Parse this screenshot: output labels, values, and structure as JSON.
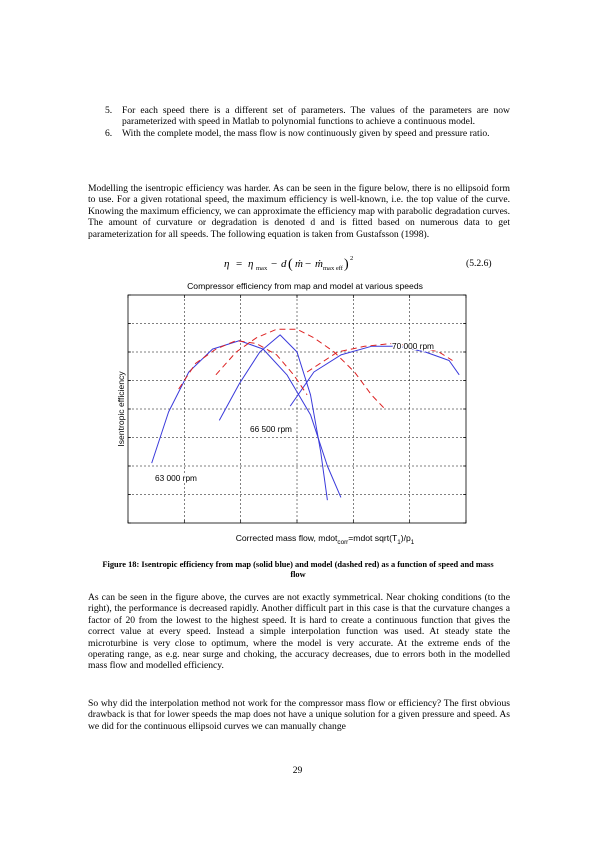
{
  "list_items": [
    {
      "num": "5.",
      "text": "For each speed there is a different set of parameters. The values of the parameters are now parameterized with speed in Matlab to polynomial functions to achieve a continuous model."
    },
    {
      "num": "6.",
      "text": "With the complete model, the mass flow is now continuously given by speed and pressure ratio."
    }
  ],
  "paragraph_1": "Modelling the isentropic efficiency was harder. As can be seen in the figure below, there is no ellipsoid form to use. For a given rotational speed, the maximum efficiency is well-known, i.e. the top value of the curve. Knowing the maximum efficiency, we can approximate the efficiency map with parabolic degradation curves. The amount of curvature or degradation is denoted d and is fitted based on numerous data to get parameterization for all speeds. The following equation is taken from Gustafsson (1998).",
  "equation_number": "(5.2.6)",
  "chart_data": {
    "type": "line",
    "title": "Compressor efficiency from map and model at various speeds",
    "xlabel_main": "Corrected mass flow, mdot",
    "xlabel_sub": "corr",
    "xlabel_rest": "=mdot sqrt(T",
    "xlabel_sub2": "1",
    "xlabel_rest2": ")/p",
    "xlabel_sub3": "1",
    "ylabel": "Isentropic efficiency",
    "xlim": [
      0,
      10
    ],
    "ylim": [
      0,
      8
    ],
    "grid": true,
    "axis_numbers_shown": false,
    "annotations": [
      "63 000 rpm",
      "66 500 rpm",
      "70 000 rpm"
    ],
    "series": [
      {
        "style": "solid",
        "color": "#3a3adb",
        "x": [
          0.7,
          1.2,
          1.8,
          2.5,
          3.3,
          4.0,
          4.7,
          5.4,
          5.9,
          6.3
        ],
        "y": [
          2.1,
          3.9,
          5.3,
          6.1,
          6.4,
          6.1,
          5.2,
          3.8,
          2.0,
          0.9
        ]
      },
      {
        "style": "solid",
        "color": "#3a3adb",
        "x": [
          2.7,
          3.3,
          3.9,
          4.5,
          5.0,
          5.4,
          5.7,
          5.9
        ],
        "y": [
          3.6,
          4.9,
          6.0,
          6.6,
          6.0,
          4.5,
          2.5,
          0.8
        ]
      },
      {
        "style": "solid",
        "color": "#3a3adb",
        "x": [
          4.8,
          5.5,
          6.3,
          7.2,
          8.0,
          8.8,
          9.5,
          9.8
        ],
        "y": [
          4.1,
          5.3,
          5.9,
          6.2,
          6.2,
          6.0,
          5.7,
          5.2
        ]
      },
      {
        "style": "dashed",
        "color": "#dd2222",
        "x": [
          1.5,
          2.0,
          2.6,
          3.2,
          3.8,
          4.4,
          4.9,
          5.3
        ],
        "y": [
          4.7,
          5.6,
          6.1,
          6.4,
          6.3,
          5.9,
          5.2,
          4.5
        ]
      },
      {
        "style": "dashed",
        "color": "#dd2222",
        "x": [
          2.6,
          3.2,
          3.8,
          4.4,
          5.0,
          5.5,
          6.1,
          6.7,
          7.2,
          7.6
        ],
        "y": [
          5.2,
          6.0,
          6.5,
          6.8,
          6.8,
          6.5,
          6.0,
          5.3,
          4.5,
          4.0
        ]
      },
      {
        "style": "dashed",
        "color": "#dd2222",
        "x": [
          5.3,
          6.2,
          7.0,
          7.8,
          8.5,
          9.2,
          9.6
        ],
        "y": [
          5.3,
          6.0,
          6.2,
          6.3,
          6.2,
          6.0,
          5.7
        ]
      }
    ]
  },
  "caption": "Figure 18: Isentropic efficiency from map (solid blue) and model (dashed red) as a function of speed and mass flow",
  "paragraph_2": "As can be seen in the figure above, the curves are not exactly symmetrical. Near choking conditions (to the right), the performance is decreased rapidly. Another difficult part in this case is that the curvature changes a factor of 20 from the lowest to the highest speed. It is hard to create a continuous function that gives the correct value at every speed. Instead a simple interpolation function was used. At steady state the microturbine is very close to optimum, where the model is very accurate. At the extreme ends of the operating range, as e.g. near surge and choking, the accuracy decreases, due to errors both in the modelled mass flow and modelled efficiency.",
  "paragraph_3": "So why did the interpolation method not work for the compressor mass flow or efficiency? The first obvious drawback is that for lower speeds the map does not have a unique solution for a given pressure and speed. As we did for the continuous ellipsoid curves we can manually change",
  "page_number": "29"
}
